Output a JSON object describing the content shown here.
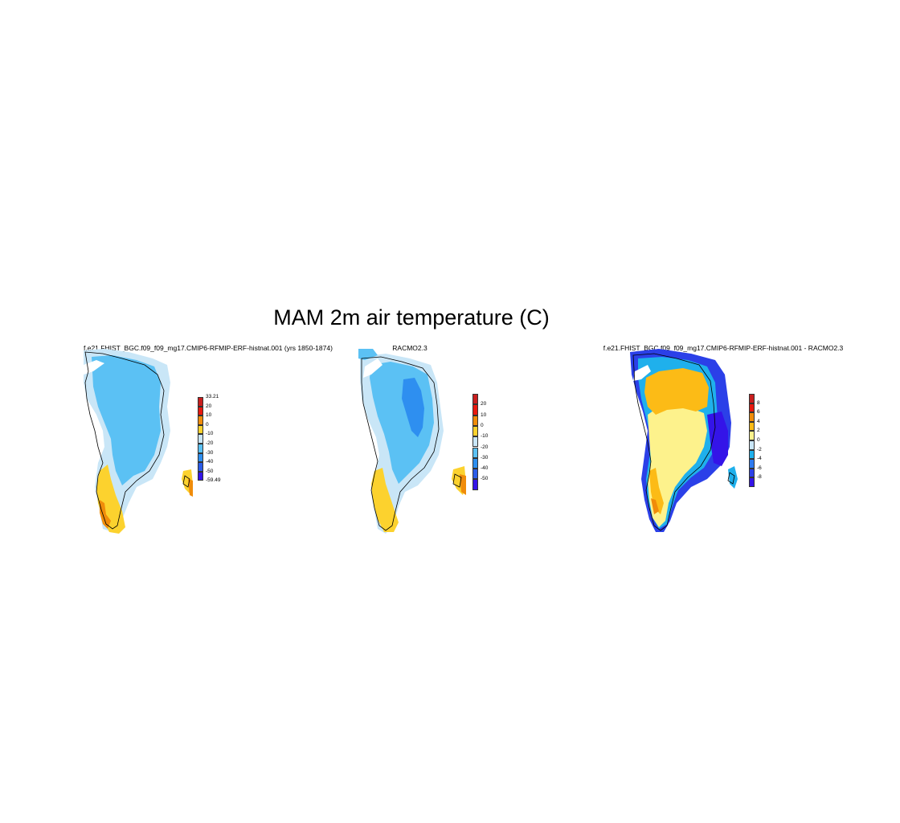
{
  "title": "MAM 2m air temperature (C)",
  "panels": [
    {
      "name": "model",
      "title": "f.e21.FHIST_BGC.f09_f09_mg17.CMIP6-RFMIP-ERF-histnat.001 (yrs 1850-1874)",
      "colorbar": {
        "labels": [
          "33.21",
          "20",
          "10",
          "0",
          "-10",
          "-20",
          "-30",
          "-40",
          "-50",
          "-59.49"
        ],
        "colors": [
          "#c81e1e",
          "#e8190f",
          "#f08c0a",
          "#fcd22e",
          "#c9e6f7",
          "#5bc1f4",
          "#2e8ff0",
          "#2b5ce8",
          "#3414e8"
        ]
      }
    },
    {
      "name": "obs",
      "title": "RACMO2.3",
      "colorbar": {
        "labels": [
          "20",
          "10",
          "0",
          "-10",
          "-20",
          "-30",
          "-40",
          "-50"
        ],
        "colors": [
          "#c81e1e",
          "#e8190f",
          "#f08c0a",
          "#fcd22e",
          "#c9e6f7",
          "#5bc1f4",
          "#2e8ff0",
          "#2b5ce8",
          "#3414e8"
        ]
      }
    },
    {
      "name": "diff",
      "title": "f.e21.FHIST_BGC.f09_f09_mg17.CMIP6-RFMIP-ERF-histnat.001 - RACMO2.3",
      "colorbar": {
        "labels": [
          "8",
          "6",
          "4",
          "2",
          "0",
          "-2",
          "-4",
          "-6",
          "-8"
        ],
        "colors": [
          "#c81e1e",
          "#e8190f",
          "#f08c0a",
          "#fcbb16",
          "#fdf28c",
          "#c9e6f7",
          "#1fb0ec",
          "#2e7bf0",
          "#2b40e8",
          "#3414e8"
        ]
      }
    }
  ]
}
